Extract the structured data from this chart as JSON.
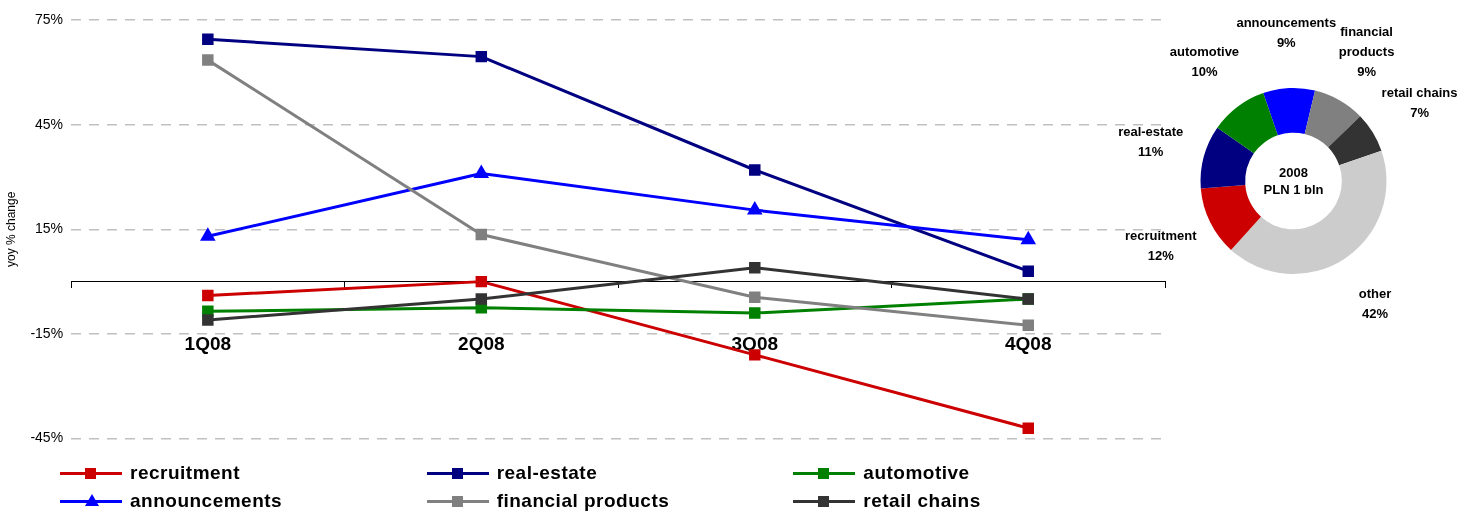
{
  "chart_data": [
    {
      "type": "line",
      "ylabel": "yoy % change",
      "categories": [
        "1Q08",
        "2Q08",
        "3Q08",
        "4Q08"
      ],
      "series": [
        {
          "name": "recruitment",
          "color": "#cc0000",
          "marker": "square",
          "values": [
            -4,
            0,
            -21,
            -42
          ]
        },
        {
          "name": "real-estate",
          "color": "#000080",
          "marker": "square",
          "values": [
            69.5,
            64.5,
            32,
            3
          ]
        },
        {
          "name": "automotive",
          "color": "#008000",
          "marker": "square",
          "values": [
            -8.5,
            -7.5,
            -9,
            -5
          ]
        },
        {
          "name": "announcements",
          "color": "#0000ff",
          "marker": "triangle",
          "values": [
            13,
            31,
            20.5,
            12
          ]
        },
        {
          "name": "financial products",
          "color": "#808080",
          "marker": "square",
          "values": [
            63.5,
            13.5,
            -4.5,
            -12.5
          ]
        },
        {
          "name": "retail chains",
          "color": "#333333",
          "marker": "square",
          "values": [
            -11,
            -5,
            4,
            -5
          ]
        }
      ],
      "ylim": [
        -45,
        75
      ],
      "yticks": [
        {
          "value": -45,
          "label": "-45%"
        },
        {
          "value": -15,
          "label": "-15%"
        },
        {
          "value": 15,
          "label": "15%"
        },
        {
          "value": 45,
          "label": "45%"
        },
        {
          "value": 75,
          "label": "75%"
        }
      ],
      "grid": "y",
      "line_style": "solid",
      "legend": "bottom"
    },
    {
      "type": "donut",
      "title": "2008",
      "subtitle": "PLN 1 bln",
      "categories": [
        "announcements",
        "financial products",
        "retail chains",
        "other",
        "recruitment",
        "real-estate",
        "automotive"
      ],
      "values": [
        9,
        9,
        7,
        42,
        12,
        11,
        10
      ],
      "colors": [
        "#0000ff",
        "#808080",
        "#333333",
        "#cccccc",
        "#cc0000",
        "#000080",
        "#008000"
      ],
      "value_labels": [
        "9%",
        "9%",
        "7%",
        "42%",
        "12%",
        "11%",
        "10%"
      ]
    }
  ]
}
